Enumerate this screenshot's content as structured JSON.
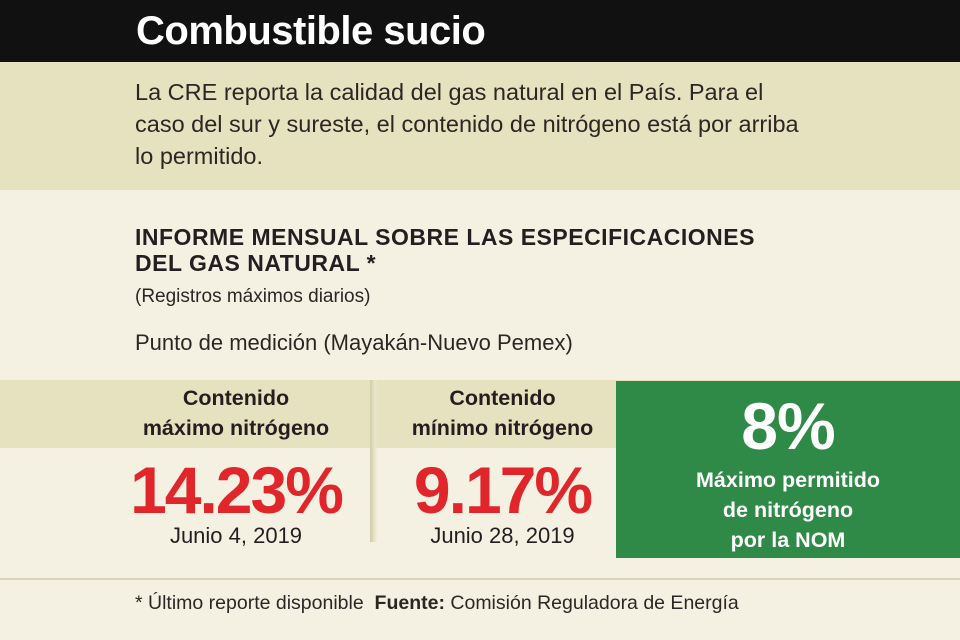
{
  "header": {
    "title": "Combustible sucio"
  },
  "intro": {
    "text": "La CRE reporta la calidad del gas natural en el País. Para el caso del sur y sureste, el contenido de nitrógeno está por arriba lo permitido."
  },
  "report": {
    "title_line1": "INFORME MENSUAL SOBRE LAS ESPECIFICACIONES",
    "title_line2": "DEL GAS NATURAL *",
    "subtitle": "(Registros máximos diarios)",
    "measurement_point": "Punto de medición (Mayakán-Nuevo Pemex)"
  },
  "stats": {
    "max": {
      "label_line1": "Contenido",
      "label_line2": "máximo nitrógeno",
      "value": "14.23%",
      "date": "Junio 4, 2019"
    },
    "min": {
      "label_line1": "Contenido",
      "label_line2": "mínimo nitrógeno",
      "value": "9.17%",
      "date": "Junio 28, 2019"
    },
    "nom": {
      "value": "8%",
      "text_line1": "Máximo permitido",
      "text_line2": "de nitrógeno",
      "text_line3": "por la NOM"
    }
  },
  "footer": {
    "note": "* Último reporte disponible",
    "source_label": "Fuente:",
    "source": "Comisión Reguladora de Energía"
  },
  "colors": {
    "title_bar": "#111111",
    "band": "#e6e2bf",
    "background": "#f4f1e2",
    "accent_red": "#e0262b",
    "accent_green": "#2f8a47"
  }
}
